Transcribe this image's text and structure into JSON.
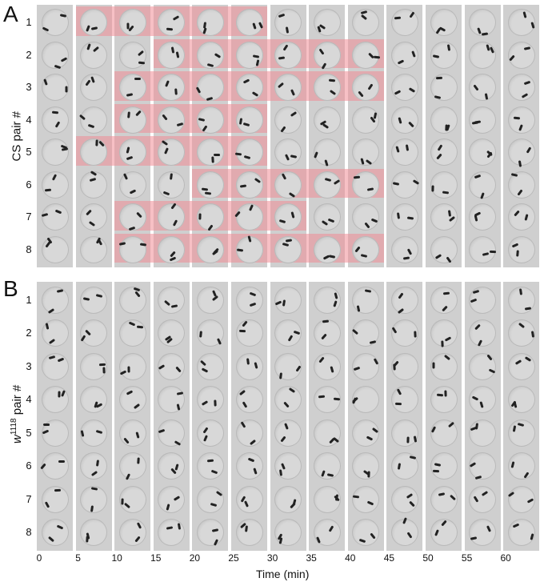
{
  "panelA": {
    "letter": "A",
    "ylabel": "CS pair #",
    "rows": [
      "1",
      "2",
      "3",
      "4",
      "5",
      "6",
      "7",
      "8"
    ],
    "highlights": [
      {
        "row": 1,
        "from_min": 5,
        "to_min": 25
      },
      {
        "row": 2,
        "from_min": 15,
        "to_min": 40
      },
      {
        "row": 3,
        "from_min": 10,
        "to_min": 40
      },
      {
        "row": 4,
        "from_min": 10,
        "to_min": 25
      },
      {
        "row": 5,
        "from_min": 5,
        "to_min": 25
      },
      {
        "row": 6,
        "from_min": 20,
        "to_min": 40
      },
      {
        "row": 7,
        "from_min": 10,
        "to_min": 30
      },
      {
        "row": 8,
        "from_min": 10,
        "to_min": 40
      }
    ]
  },
  "panelB": {
    "letter": "B",
    "ylabel_main": "w",
    "ylabel_sup": "1118",
    "ylabel_rest": " pair #",
    "rows": [
      "1",
      "2",
      "3",
      "4",
      "5",
      "6",
      "7",
      "8"
    ]
  },
  "xaxis": {
    "ticks": [
      "0",
      "5",
      "10",
      "15",
      "20",
      "25",
      "30",
      "35",
      "40",
      "45",
      "50",
      "55",
      "60"
    ],
    "label": "Time (min)"
  },
  "colors": {
    "highlight": "#f08c96",
    "strip": "#cfcfcf",
    "well": "#d8d8d8",
    "fly": "#222222"
  }
}
